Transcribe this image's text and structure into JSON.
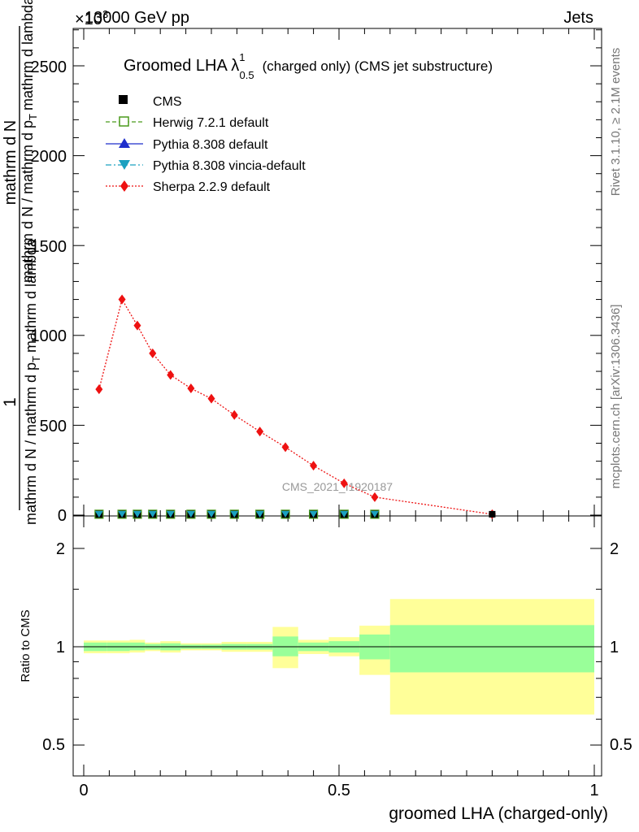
{
  "header": {
    "energy_label": "13000 GeV pp",
    "category_label": "Jets",
    "exponent_label": "×10",
    "exponent_power": "3"
  },
  "plot_title": {
    "main": "Groomed LHA λ",
    "superscript": "1",
    "subscript": "0.5",
    "suffix": "(charged only) (CMS jet substructure)"
  },
  "side_labels": {
    "rivet": "Rivet 3.1.10, ≥ 2.1M events",
    "mcplots": "mcplots.cern.ch [arXiv:1306.3436]"
  },
  "watermark": "CMS_2021_I1920187",
  "y_axis_main": {
    "numerator": "1",
    "line1": "mathrm d N / mathrm d p",
    "line1_sub": "T",
    "line1_rest": "mathrm d lambda",
    "denominator": "mathrm d",
    "dN": "mathrm d N",
    "dp": "mathrm d p",
    "dp_sub": "T",
    "dlambda": "mathrm d lambda",
    "ticks": [
      "0",
      "500",
      "1000",
      "1500",
      "2000",
      "2500"
    ]
  },
  "y_axis_ratio": {
    "label": "Ratio to CMS",
    "ticks": [
      "0.5",
      "1",
      "2"
    ]
  },
  "x_axis": {
    "label": "groomed LHA (charged-only)",
    "ticks": [
      "0",
      "0.5",
      "1"
    ]
  },
  "legend": [
    {
      "name": "CMS",
      "color": "#000000",
      "marker": "square-filled",
      "line": "none"
    },
    {
      "name": "Herwig 7.2.1 default",
      "color": "#4a9a1c",
      "marker": "square-open",
      "line": "dashed"
    },
    {
      "name": "Pythia 8.308 default",
      "color": "#1f2fcc",
      "marker": "triangle-up",
      "line": "solid"
    },
    {
      "name": "Pythia 8.308 vincia-default",
      "color": "#1aa0c0",
      "marker": "triangle-down",
      "line": "dashdot"
    },
    {
      "name": "Sherpa 2.2.9 default",
      "color": "#ee1111",
      "marker": "diamond",
      "line": "dotted"
    }
  ],
  "chart_data": {
    "type": "line",
    "xlim": [
      0,
      1
    ],
    "ylim": [
      0,
      2700
    ],
    "y_scale_factor": 1000,
    "series": [
      {
        "name": "Sherpa 2.2.9 default",
        "x": [
          0.03,
          0.075,
          0.105,
          0.135,
          0.17,
          0.21,
          0.25,
          0.295,
          0.345,
          0.395,
          0.45,
          0.51,
          0.57,
          0.8
        ],
        "y": [
          700,
          1200,
          1055,
          900,
          780,
          705,
          648,
          557,
          465,
          378,
          275,
          177,
          100,
          5
        ]
      },
      {
        "name": "CMS",
        "x": [
          0.03,
          0.075,
          0.105,
          0.135,
          0.17,
          0.21,
          0.25,
          0.295,
          0.345,
          0.395,
          0.45,
          0.51,
          0.57,
          0.8
        ],
        "y": [
          5,
          5,
          5,
          5,
          5,
          5,
          5,
          5,
          5,
          5,
          5,
          5,
          5,
          5
        ]
      }
    ],
    "ratio_bands": {
      "x_edges": [
        0,
        0.045,
        0.09,
        0.12,
        0.15,
        0.19,
        0.23,
        0.27,
        0.32,
        0.37,
        0.42,
        0.48,
        0.54,
        0.6,
        1.0
      ],
      "inner_low": [
        0.97,
        0.97,
        0.975,
        0.98,
        0.975,
        0.985,
        0.985,
        0.98,
        0.98,
        0.935,
        0.97,
        0.96,
        0.915,
        0.835
      ],
      "inner_high": [
        1.03,
        1.03,
        1.03,
        1.02,
        1.025,
        1.015,
        1.015,
        1.02,
        1.02,
        1.075,
        1.03,
        1.04,
        1.09,
        1.165
      ],
      "outer_low": [
        0.955,
        0.955,
        0.96,
        0.97,
        0.96,
        0.975,
        0.975,
        0.965,
        0.965,
        0.86,
        0.95,
        0.935,
        0.82,
        0.62
      ],
      "outer_high": [
        1.045,
        1.045,
        1.05,
        1.03,
        1.04,
        1.025,
        1.025,
        1.035,
        1.035,
        1.15,
        1.05,
        1.07,
        1.16,
        1.4
      ]
    },
    "ratio_ylim": [
      0.4,
      2.3
    ]
  }
}
